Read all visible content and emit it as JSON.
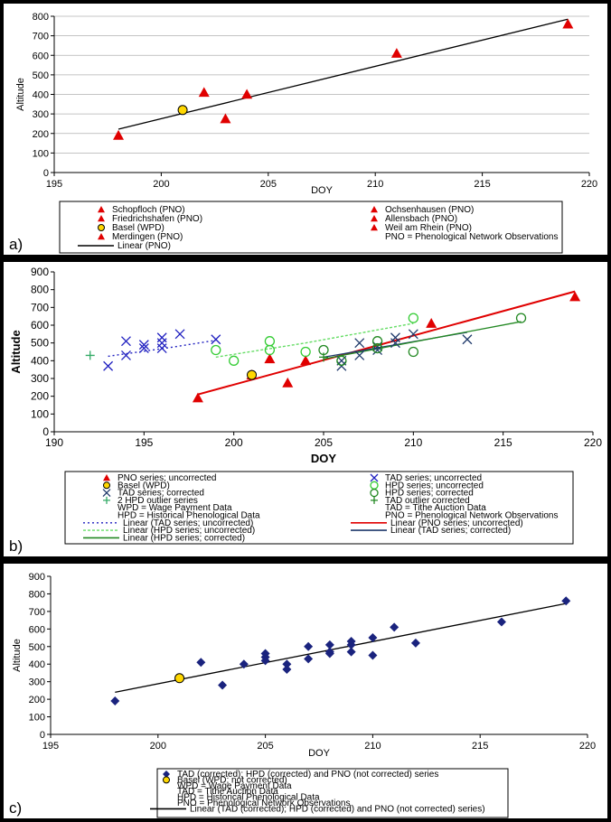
{
  "panels": [
    {
      "id": "a",
      "label": "a)",
      "chart_data": {
        "type": "scatter",
        "xlabel": "DOY",
        "ylabel": "Altitude",
        "xlim": [
          195,
          220
        ],
        "ylim": [
          0,
          800
        ],
        "xticks": [
          195,
          200,
          205,
          210,
          215,
          220
        ],
        "yticks": [
          0,
          100,
          200,
          300,
          400,
          500,
          600,
          700,
          800
        ],
        "grid": "horizontal",
        "legend_position": "bottom",
        "series": [
          {
            "name": "Schopfloch (PNO)",
            "marker": "triangle",
            "color": "#e00000",
            "points": [
              [
                204,
                400
              ]
            ]
          },
          {
            "name": "Ochsenhausen (PNO)",
            "marker": "triangle",
            "color": "#e00000",
            "points": [
              [
                203,
                275
              ]
            ]
          },
          {
            "name": "Friedrichshafen (PNO)",
            "marker": "triangle",
            "color": "#e00000",
            "points": [
              [
                202,
                410
              ]
            ]
          },
          {
            "name": "Allensbach (PNO)",
            "marker": "triangle",
            "color": "#e00000",
            "points": [
              [
                211,
                610
              ]
            ]
          },
          {
            "name": "Basel (WPD)",
            "marker": "circle",
            "color": "#ffd700",
            "points": [
              [
                201,
                320
              ]
            ]
          },
          {
            "name": "Weil am Rhein (PNO)",
            "marker": "triangle",
            "color": "#e00000",
            "points": [
              [
                219,
                760
              ]
            ]
          },
          {
            "name": "Merdingen (PNO)",
            "marker": "triangle",
            "color": "#e00000",
            "points": [
              [
                198,
                190
              ]
            ]
          }
        ],
        "lines": [
          {
            "name": "Linear (PNO)",
            "style": "solid",
            "color": "#000000",
            "points": [
              [
                198,
                222
              ],
              [
                219,
                785
              ]
            ]
          }
        ],
        "legend_note": "PNO = Phenological Network Observations"
      }
    },
    {
      "id": "b",
      "label": "b)",
      "chart_data": {
        "type": "scatter",
        "xlabel": "DOY",
        "ylabel": "Altitude",
        "xlim": [
          190,
          220
        ],
        "ylim": [
          0,
          900
        ],
        "xticks": [
          190,
          195,
          200,
          205,
          210,
          215,
          220
        ],
        "yticks": [
          0,
          100,
          200,
          300,
          400,
          500,
          600,
          700,
          800,
          900
        ],
        "grid": "none",
        "legend_position": "bottom",
        "series": [
          {
            "name": "PNO series; uncorrected",
            "marker": "triangle",
            "color": "#e00000",
            "points": [
              [
                198,
                190
              ],
              [
                201,
                320
              ],
              [
                202,
                410
              ],
              [
                203,
                275
              ],
              [
                204,
                400
              ],
              [
                211,
                610
              ],
              [
                219,
                760
              ]
            ]
          },
          {
            "name": "TAD series; uncorrected",
            "marker": "x",
            "color": "#2020c0",
            "points": [
              [
                193,
                370
              ],
              [
                194,
                430
              ],
              [
                194,
                510
              ],
              [
                195,
                490
              ],
              [
                195,
                470
              ],
              [
                196,
                470
              ],
              [
                196,
                530
              ],
              [
                196,
                500
              ],
              [
                197,
                550
              ],
              [
                199,
                520
              ]
            ]
          },
          {
            "name": "Basel (WPD)",
            "marker": "circle",
            "color": "#ffd700",
            "points": [
              [
                201,
                320
              ]
            ]
          },
          {
            "name": "HPD series; uncorrected",
            "marker": "circle-open",
            "color": "#33cc33",
            "points": [
              [
                199,
                460
              ],
              [
                200,
                400
              ],
              [
                202,
                510
              ],
              [
                202,
                460
              ],
              [
                204,
                450
              ],
              [
                210,
                640
              ]
            ]
          },
          {
            "name": "TAD series; corrected",
            "marker": "x",
            "color": "#1f3a6b",
            "points": [
              [
                206,
                370
              ],
              [
                206,
                400
              ],
              [
                207,
                430
              ],
              [
                207,
                500
              ],
              [
                208,
                460
              ],
              [
                208,
                480
              ],
              [
                209,
                500
              ],
              [
                209,
                530
              ],
              [
                210,
                550
              ],
              [
                213,
                520
              ]
            ]
          },
          {
            "name": "HPD series; corrected",
            "marker": "circle-open",
            "color": "#228822",
            "points": [
              [
                205,
                460
              ],
              [
                206,
                400
              ],
              [
                208,
                510
              ],
              [
                208,
                470
              ],
              [
                210,
                450
              ],
              [
                216,
                640
              ]
            ]
          },
          {
            "name": "2 HPD outlier series",
            "marker": "plus",
            "color": "#33aa66",
            "points": [
              [
                192,
                430
              ]
            ]
          },
          {
            "name": "TAD outlier corrected",
            "marker": "plus",
            "color": "#228822",
            "points": [
              [
                205,
                420
              ]
            ]
          }
        ],
        "lines": [
          {
            "name": "Linear (TAD series; uncorrected)",
            "style": "dotted",
            "color": "#2020c0",
            "points": [
              [
                193,
                425
              ],
              [
                196.5,
                475
              ],
              [
                199,
                515
              ]
            ]
          },
          {
            "name": "Linear (PNO series; uncorrected)",
            "style": "solid",
            "color": "#e00000",
            "points": [
              [
                198,
                210
              ],
              [
                219,
                790
              ]
            ]
          },
          {
            "name": "Linear (HPD series; uncorrected)",
            "style": "dashed",
            "color": "#66dd66",
            "points": [
              [
                199,
                420
              ],
              [
                204,
                500
              ],
              [
                210,
                610
              ]
            ]
          },
          {
            "name": "Linear (TAD series; corrected)",
            "style": "solid",
            "color": "#1f3a6b",
            "points": [
              [
                205,
                420
              ],
              [
                213,
                560
              ]
            ]
          },
          {
            "name": "Linear (HPD series; corrected)",
            "style": "solid",
            "color": "#228822",
            "points": [
              [
                205,
                410
              ],
              [
                216,
                620
              ]
            ]
          }
        ],
        "legend_notes": [
          "WPD = Wage Payment Data",
          "TAD = Tithe Auction Data",
          "HPD = Historical Phenological Data",
          "PNO = Phenological Network Observations"
        ]
      }
    },
    {
      "id": "c",
      "label": "c)",
      "chart_data": {
        "type": "scatter",
        "xlabel": "DOY",
        "ylabel": "Altitude",
        "xlim": [
          195,
          220
        ],
        "ylim": [
          0,
          900
        ],
        "xticks": [
          195,
          200,
          205,
          210,
          215,
          220
        ],
        "yticks": [
          0,
          100,
          200,
          300,
          400,
          500,
          600,
          700,
          800,
          900
        ],
        "grid": "none",
        "legend_position": "bottom",
        "series": [
          {
            "name": "TAD (corrected); HPD (corrected) and PNO (not corrected) series",
            "marker": "diamond",
            "color": "#1a237e",
            "points": [
              [
                198,
                190
              ],
              [
                202,
                410
              ],
              [
                203,
                280
              ],
              [
                204,
                400
              ],
              [
                205,
                460
              ],
              [
                205,
                440
              ],
              [
                205,
                420
              ],
              [
                206,
                400
              ],
              [
                206,
                370
              ],
              [
                207,
                430
              ],
              [
                207,
                500
              ],
              [
                208,
                510
              ],
              [
                208,
                470
              ],
              [
                208,
                460
              ],
              [
                209,
                530
              ],
              [
                209,
                510
              ],
              [
                209,
                470
              ],
              [
                210,
                550
              ],
              [
                210,
                450
              ],
              [
                211,
                610
              ],
              [
                212,
                520
              ],
              [
                216,
                640
              ],
              [
                219,
                760
              ]
            ]
          },
          {
            "name": "Basel (WPD; not corrected)",
            "marker": "circle",
            "color": "#ffd700",
            "points": [
              [
                201,
                320
              ]
            ]
          }
        ],
        "lines": [
          {
            "name": "Linear (TAD (corrected); HPD (corrected) and PNO (not corrected) series)",
            "style": "solid",
            "color": "#000000",
            "points": [
              [
                198,
                240
              ],
              [
                219,
                745
              ]
            ]
          }
        ],
        "legend_notes": [
          "WPD = Wage Payment Data",
          "TAD = Tithe Auction Data",
          "HPD = Historical Phenological Data",
          "PNO = Phenological Network Observations"
        ]
      }
    }
  ]
}
